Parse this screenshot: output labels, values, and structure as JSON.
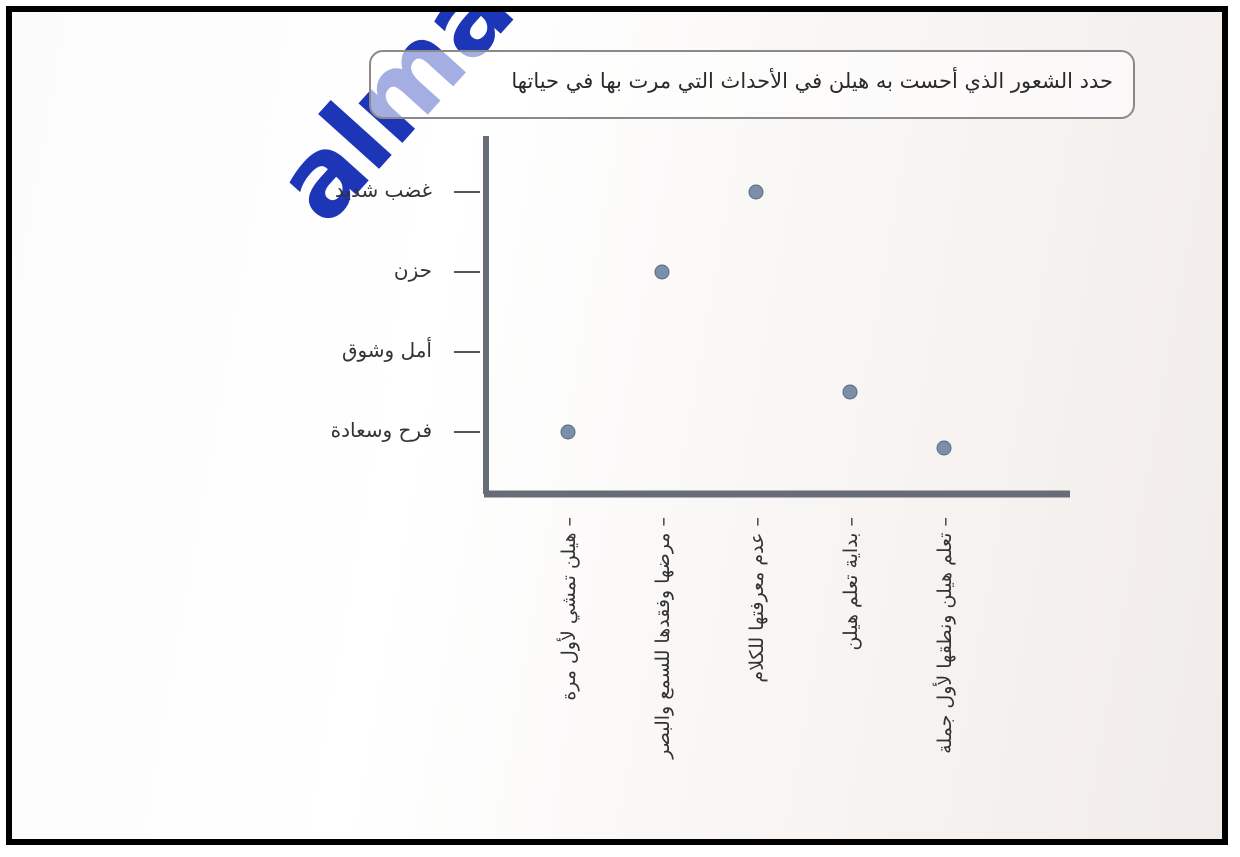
{
  "watermark": "almanahj",
  "title": "حدد الشعور الذي أحست به هيلن في الأحداث التي مرت بها في حياتها",
  "chart_data": {
    "type": "scatter",
    "y_categories": [
      "فرح وسعادة",
      "أمل وشوق",
      "حزن",
      "غضب شديد"
    ],
    "x_categories": [
      "هيلن تمشي لأول مرة",
      "مرضها وفقدها للسمع والبصر",
      "عدم معرفتها للكلام",
      "بداية تعلم هيلن",
      "تعلم هيلن ونطقها لأول جملة"
    ],
    "points": [
      {
        "x": "هيلن تمشي لأول مرة",
        "y": 1
      },
      {
        "x": "مرضها وفقدها للسمع والبصر",
        "y": 3
      },
      {
        "x": "عدم معرفتها للكلام",
        "y": 4
      },
      {
        "x": "بداية تعلم هيلن",
        "y": 1.5
      },
      {
        "x": "تعلم هيلن ونطقها لأول جملة",
        "y": 0.8
      }
    ],
    "point_color": "#7b8fa8",
    "axis_color": "#666d77",
    "grid": false
  }
}
